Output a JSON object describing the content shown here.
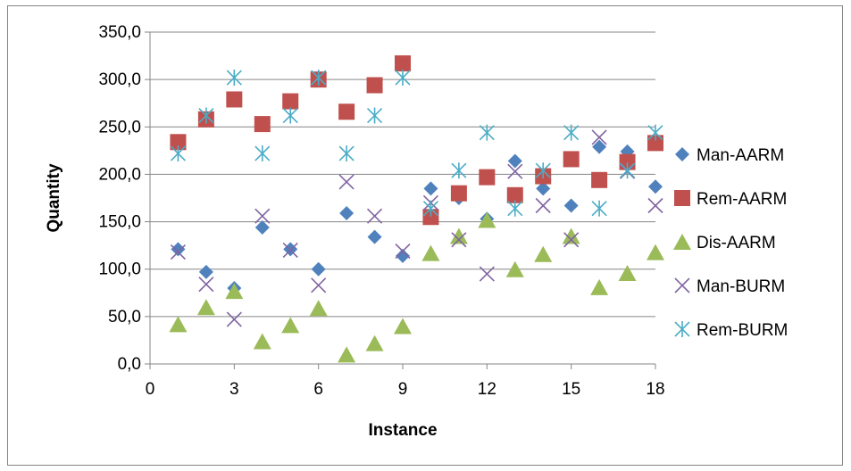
{
  "chart_data": {
    "type": "scatter",
    "title": "",
    "xlabel": "Instance",
    "ylabel": "Quantity",
    "xlim": [
      0,
      18
    ],
    "ylim": [
      0,
      350
    ],
    "xticks": [
      0,
      3,
      6,
      9,
      12,
      15,
      18
    ],
    "xtick_labels": [
      "0",
      "3",
      "6",
      "9",
      "12",
      "15",
      "18"
    ],
    "yticks": [
      0,
      50,
      100,
      150,
      200,
      250,
      300,
      350
    ],
    "ytick_labels": [
      "0,0",
      "50,0",
      "100,0",
      "150,0",
      "200,0",
      "250,0",
      "300,0",
      "350,0"
    ],
    "grid": "horizontal",
    "legend_position": "right",
    "series": [
      {
        "name": "Man-AARM",
        "marker": "diamond",
        "color": "#4f81bd",
        "x": [
          1,
          2,
          3,
          4,
          5,
          6,
          7,
          8,
          9,
          10,
          11,
          12,
          13,
          14,
          15,
          16,
          17,
          18
        ],
        "y": [
          121,
          97,
          80,
          144,
          121,
          100,
          159,
          134,
          114,
          185,
          175,
          153,
          214,
          185,
          167,
          229,
          224,
          187
        ]
      },
      {
        "name": "Rem-AARM",
        "marker": "square",
        "color": "#c0504d",
        "x": [
          1,
          2,
          3,
          4,
          5,
          6,
          7,
          8,
          9,
          10,
          11,
          12,
          13,
          14,
          15,
          16,
          17,
          18
        ],
        "y": [
          234,
          258,
          279,
          253,
          277,
          300,
          266,
          294,
          317,
          155,
          180,
          197,
          178,
          198,
          216,
          194,
          213,
          233
        ]
      },
      {
        "name": "Dis-AARM",
        "marker": "triangle",
        "color": "#9bbb59",
        "x": [
          1,
          2,
          3,
          4,
          5,
          6,
          7,
          8,
          9,
          10,
          11,
          12,
          13,
          14,
          15,
          16,
          17,
          18
        ],
        "y": [
          42,
          60,
          77,
          24,
          41,
          59,
          10,
          22,
          40,
          117,
          135,
          152,
          100,
          116,
          135,
          81,
          96,
          118
        ]
      },
      {
        "name": "Man-BURM",
        "marker": "x",
        "color": "#8064a2",
        "x": [
          1,
          2,
          3,
          4,
          5,
          6,
          7,
          8,
          9,
          10,
          11,
          12,
          13,
          14,
          15,
          16,
          17,
          18
        ],
        "y": [
          118,
          84,
          47,
          156,
          120,
          83,
          192,
          156,
          119,
          170,
          131,
          95,
          203,
          167,
          131,
          239,
          203,
          167
        ]
      },
      {
        "name": "Rem-BURM",
        "marker": "star",
        "color": "#4bacc6",
        "x": [
          1,
          2,
          3,
          4,
          5,
          6,
          7,
          8,
          9,
          10,
          11,
          12,
          13,
          14,
          15,
          16,
          17,
          18
        ],
        "y": [
          222,
          262,
          302,
          222,
          262,
          302,
          222,
          262,
          302,
          164,
          204,
          244,
          164,
          204,
          244,
          164,
          204,
          244
        ]
      }
    ]
  }
}
